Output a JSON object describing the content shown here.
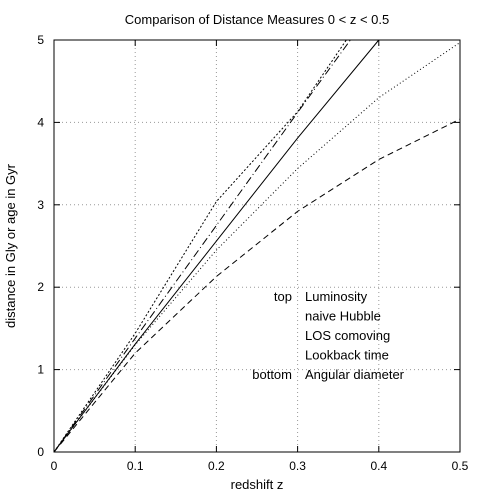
{
  "chart_data": {
    "type": "line",
    "title": "Comparison of Distance Measures 0 < z < 0.5",
    "xlabel": "redshift z",
    "ylabel": "distance in Gly or age in Gyr",
    "xlim": [
      0,
      0.5
    ],
    "ylim": [
      0,
      5
    ],
    "x_ticks": [
      0,
      0.1,
      0.2,
      0.3,
      0.4,
      0.5
    ],
    "x_tick_labels": [
      "0",
      "0.1",
      "0.2",
      "0.3",
      "0.4",
      "0.5"
    ],
    "y_ticks": [
      0,
      1,
      2,
      3,
      4,
      5
    ],
    "y_tick_labels": [
      "0",
      "1",
      "2",
      "3",
      "4",
      "5"
    ],
    "grid": true,
    "legend_placement": "lower-right",
    "legend_markers": [
      {
        "text": "top",
        "row": 0
      },
      {
        "text": "bottom",
        "row": 4
      }
    ],
    "series": [
      {
        "name": "Luminosity",
        "style": "dotted-dense",
        "x": [
          0,
          0.1,
          0.2,
          0.3,
          0.36
        ],
        "y": [
          0,
          1.44,
          3.04,
          4.13,
          5.0
        ]
      },
      {
        "name": "naive Hubble",
        "style": "dash-dot",
        "x": [
          0,
          0.1,
          0.2,
          0.3,
          0.365
        ],
        "y": [
          0,
          1.38,
          2.75,
          4.12,
          5.0
        ]
      },
      {
        "name": "LOS comoving",
        "style": "solid",
        "x": [
          0,
          0.1,
          0.2,
          0.3,
          0.4
        ],
        "y": [
          0,
          1.31,
          2.56,
          3.81,
          5.0
        ]
      },
      {
        "name": "Lookback time",
        "style": "dotted-sparse",
        "x": [
          0,
          0.1,
          0.2,
          0.3,
          0.4,
          0.5
        ],
        "y": [
          0,
          1.3,
          2.45,
          3.44,
          4.3,
          4.97
        ]
      },
      {
        "name": "Angular diameter",
        "style": "dashed",
        "x": [
          0,
          0.1,
          0.2,
          0.3,
          0.4,
          0.5
        ],
        "y": [
          0,
          1.2,
          2.13,
          2.92,
          3.55,
          4.04
        ]
      }
    ]
  }
}
